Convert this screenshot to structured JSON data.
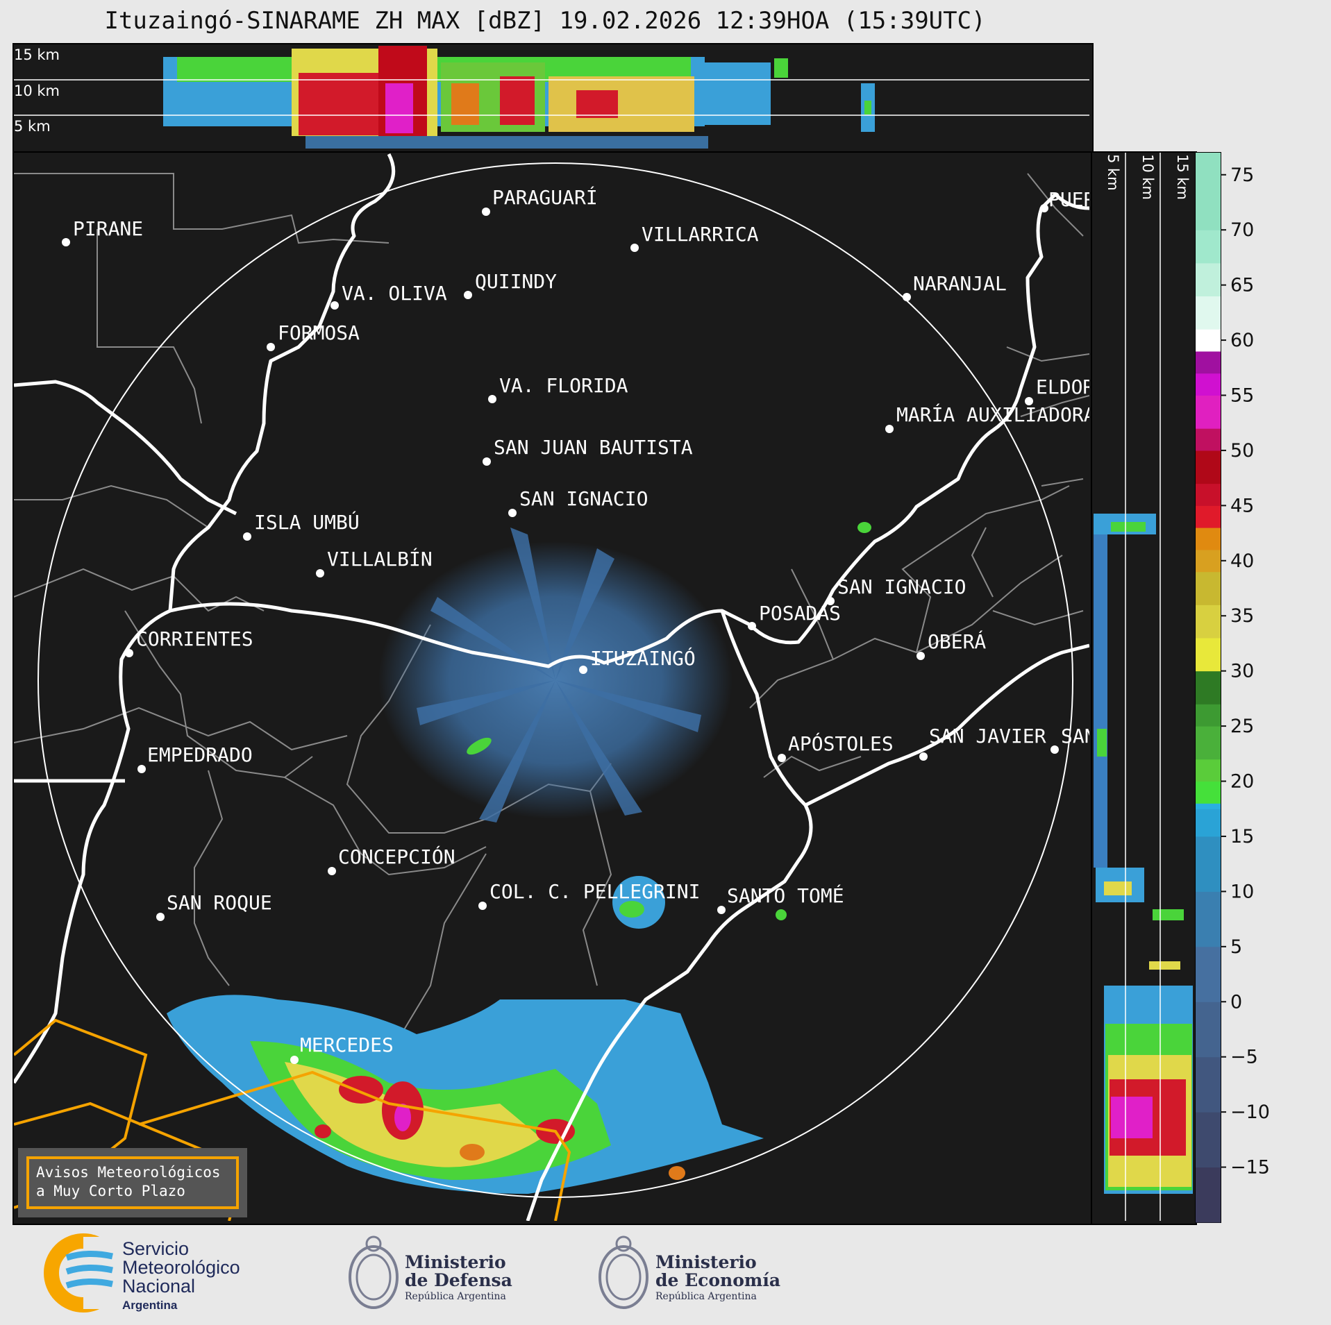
{
  "title": "Ituzaingó-SINARAME ZH MAX [dBZ] 19.02.2026 12:39HOA (15:39UTC)",
  "top_panel": {
    "altitudes": [
      "15 km",
      "10 km",
      "5 km"
    ]
  },
  "side_panel": {
    "altitudes": [
      "5 km",
      "10 km",
      "15 km"
    ]
  },
  "colorbar": {
    "ticks": [
      "75",
      "70",
      "65",
      "60",
      "55",
      "50",
      "45",
      "40",
      "35",
      "30",
      "25",
      "20",
      "15",
      "10",
      "5",
      "0",
      "−5",
      "−10",
      "−15"
    ],
    "range": [
      -20,
      77
    ]
  },
  "cities": [
    {
      "name": "PIRANE"
    },
    {
      "name": "PARAGUARÍ"
    },
    {
      "name": "VILLARRICA"
    },
    {
      "name": "QUIINDY"
    },
    {
      "name": "VA. OLIVA"
    },
    {
      "name": "NARANJAL"
    },
    {
      "name": "FORMOSA"
    },
    {
      "name": "VA. FLORIDA"
    },
    {
      "name": "ELDORADO"
    },
    {
      "name": "MARÍA AUXILIADORA"
    },
    {
      "name": "SAN JUAN BAUTISTA"
    },
    {
      "name": "SAN IGNACIO"
    },
    {
      "name": "ISLA UMBÚ"
    },
    {
      "name": "VILLALBÍN"
    },
    {
      "name": "SAN IGNACIO"
    },
    {
      "name": "POSADAS"
    },
    {
      "name": "CORRIENTES"
    },
    {
      "name": "ITUZAINGÓ"
    },
    {
      "name": "OBERÁ"
    },
    {
      "name": "EMPEDRADO"
    },
    {
      "name": "APÓSTOLES"
    },
    {
      "name": "SAN JAVIER"
    },
    {
      "name": "SAN"
    },
    {
      "name": "CONCEPCIÓN"
    },
    {
      "name": "COL. C. PELLEGRINI"
    },
    {
      "name": "SANTO TOMÉ"
    },
    {
      "name": "SAN ROQUE"
    },
    {
      "name": "MERCEDES"
    },
    {
      "name": "PUERTO"
    }
  ],
  "aviso": {
    "line1": "Avisos Meteorológicos",
    "line2": "a Muy Corto Plazo"
  },
  "logos": {
    "smn": {
      "line1": "Servicio",
      "line2": "Meteorológico",
      "line3": "Nacional",
      "line4": "Argentina"
    },
    "defensa": {
      "line1": "Ministerio",
      "line2": "de Defensa",
      "line3": "República Argentina"
    },
    "economia": {
      "line1": "Ministerio",
      "line2": "de Economía",
      "line3": "República Argentina"
    }
  },
  "colors": {
    "background": "#1a1a1a",
    "border_white": "#ffffff",
    "orange_alert": "#f5a300"
  }
}
